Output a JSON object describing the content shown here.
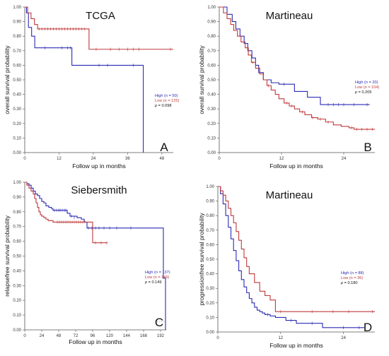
{
  "colors": {
    "high": "#2b2bb3",
    "low": "#c0393b",
    "axis": "#555555"
  },
  "chart_data": [
    {
      "type": "line",
      "panel": "A",
      "title": "TCGA",
      "xlabel": "Follow up in months",
      "ylabel": "overall survival probability",
      "xlim": [
        0,
        52
      ],
      "ylim": [
        0,
        1
      ],
      "xticks": [
        0,
        12,
        24,
        36,
        48
      ],
      "yticks": [
        0,
        0.1,
        0.2,
        0.3,
        0.4,
        0.5,
        0.6,
        0.7,
        0.8,
        0.9,
        1.0
      ],
      "legend": {
        "position": "right",
        "stat_prefix": "p",
        "stat_value": "= 0.098"
      },
      "series": [
        {
          "key": "high",
          "label_name": "High",
          "label_count": "(n = 50)",
          "x": [
            0,
            0.6,
            1.3,
            2.4,
            3.5,
            16.5,
            41.5,
            41.5
          ],
          "y": [
            1.0,
            0.96,
            0.86,
            0.8,
            0.72,
            0.6,
            0.6,
            0.0
          ],
          "censor_x": [
            7,
            13,
            15,
            16,
            26,
            29,
            38
          ],
          "censor_y": [
            0.72,
            0.72,
            0.72,
            0.72,
            0.6,
            0.6,
            0.6
          ]
        },
        {
          "key": "low",
          "label_name": "Low",
          "label_count": "(n = 125)",
          "x": [
            0,
            1.0,
            2.2,
            3.4,
            4.5,
            22.5,
            52
          ],
          "y": [
            1.0,
            0.96,
            0.92,
            0.88,
            0.85,
            0.71,
            0.71
          ],
          "censor_x": [
            5,
            6,
            7,
            8,
            9,
            10,
            11,
            12,
            13,
            14,
            15,
            16,
            17,
            18,
            19,
            20,
            21,
            25,
            30,
            33,
            36,
            38,
            40,
            51
          ],
          "censor_y": [
            0.85,
            0.85,
            0.85,
            0.85,
            0.85,
            0.85,
            0.85,
            0.85,
            0.85,
            0.85,
            0.85,
            0.85,
            0.85,
            0.85,
            0.85,
            0.85,
            0.85,
            0.71,
            0.71,
            0.71,
            0.71,
            0.71,
            0.71,
            0.71
          ]
        }
      ]
    },
    {
      "type": "line",
      "panel": "B",
      "title": "Martineau",
      "xlabel": "Follow up in months",
      "ylabel": "overall survival probability",
      "xlim": [
        0,
        30
      ],
      "ylim": [
        0,
        1
      ],
      "xticks": [
        0,
        12,
        24
      ],
      "yticks": [
        0,
        0.1,
        0.2,
        0.3,
        0.4,
        0.5,
        0.6,
        0.7,
        0.8,
        0.9,
        1.0
      ],
      "legend": {
        "position": "right",
        "stat_prefix": "p",
        "stat_value": "= 0.205"
      },
      "series": [
        {
          "key": "high",
          "label_name": "High",
          "label_count": "(n = 20)",
          "x": [
            0,
            1.5,
            2.5,
            3.2,
            4.0,
            4.8,
            5.5,
            6.3,
            7.0,
            7.6,
            8.5,
            10.0,
            11.5,
            14.5,
            17.0,
            19.5,
            29
          ],
          "y": [
            1.0,
            0.95,
            0.9,
            0.85,
            0.8,
            0.75,
            0.7,
            0.65,
            0.6,
            0.55,
            0.5,
            0.48,
            0.47,
            0.42,
            0.38,
            0.33,
            0.33
          ],
          "censor_x": [
            12.5,
            21,
            22,
            23,
            24,
            26,
            28.5
          ],
          "censor_y": [
            0.47,
            0.33,
            0.33,
            0.33,
            0.33,
            0.33,
            0.33
          ]
        },
        {
          "key": "low",
          "label_name": "Low",
          "label_count": "(n = 104)",
          "x": [
            0,
            0.8,
            1.5,
            2.2,
            2.8,
            3.5,
            4.2,
            5.0,
            5.6,
            6.2,
            7.0,
            7.8,
            8.5,
            9.2,
            10.0,
            10.8,
            11.5,
            12.5,
            13.5,
            14.5,
            15.5,
            16.5,
            17.8,
            19.0,
            20.5,
            22.0,
            23.5,
            25.0,
            26.0,
            30
          ],
          "y": [
            1.0,
            0.96,
            0.92,
            0.88,
            0.84,
            0.8,
            0.76,
            0.72,
            0.67,
            0.62,
            0.58,
            0.54,
            0.5,
            0.46,
            0.43,
            0.4,
            0.37,
            0.34,
            0.32,
            0.3,
            0.28,
            0.26,
            0.24,
            0.23,
            0.21,
            0.19,
            0.18,
            0.17,
            0.16,
            0.16
          ],
          "censor_x": [
            6.5,
            9.5,
            13,
            14,
            16,
            18,
            19.5,
            21,
            25.5,
            26.5,
            27.5,
            28.5,
            29.5
          ],
          "censor_y": [
            0.62,
            0.46,
            0.34,
            0.32,
            0.28,
            0.24,
            0.23,
            0.21,
            0.17,
            0.16,
            0.16,
            0.16,
            0.16
          ]
        }
      ]
    },
    {
      "type": "line",
      "panel": "C",
      "title": "Siebersmith",
      "xlabel": "Follow up in months",
      "ylabel": "relapsefree survival probability",
      "xlim": [
        0,
        200
      ],
      "ylim": [
        0,
        1
      ],
      "xticks": [
        0,
        24,
        48,
        72,
        96,
        120,
        144,
        168,
        192
      ],
      "yticks": [
        0,
        0.1,
        0.2,
        0.3,
        0.4,
        0.5,
        0.6,
        0.7,
        0.8,
        0.9,
        1.0
      ],
      "legend": {
        "position": "right",
        "stat_prefix": "p",
        "stat_value": "= 0.149"
      },
      "series": [
        {
          "key": "high",
          "label_name": "High",
          "label_count": "(n = 137)",
          "x": [
            0,
            3,
            6,
            9,
            12,
            15,
            18,
            21,
            24,
            27,
            30,
            34,
            38,
            40,
            60,
            64,
            74,
            80,
            84,
            88,
            196,
            196,
            199
          ],
          "y": [
            1.0,
            0.99,
            0.98,
            0.96,
            0.94,
            0.92,
            0.91,
            0.89,
            0.87,
            0.86,
            0.84,
            0.83,
            0.82,
            0.81,
            0.79,
            0.77,
            0.76,
            0.75,
            0.73,
            0.69,
            0.69,
            0.35,
            0.0
          ],
          "censor_x": [
            42,
            45,
            48,
            50,
            53,
            56,
            58,
            66,
            70,
            90,
            95,
            100,
            105,
            112,
            120,
            130,
            150
          ],
          "censor_y": [
            0.81,
            0.81,
            0.81,
            0.81,
            0.81,
            0.81,
            0.81,
            0.77,
            0.76,
            0.69,
            0.69,
            0.69,
            0.69,
            0.69,
            0.69,
            0.69,
            0.69
          ]
        },
        {
          "key": "low",
          "label_name": "Low",
          "label_count": "(n = 149)",
          "x": [
            0,
            3,
            6,
            9,
            12,
            14,
            16,
            18,
            20,
            22,
            24,
            27,
            30,
            33,
            36,
            40,
            44,
            90,
            96,
            117
          ],
          "y": [
            1.0,
            0.98,
            0.96,
            0.94,
            0.92,
            0.89,
            0.86,
            0.83,
            0.8,
            0.78,
            0.77,
            0.76,
            0.75,
            0.74,
            0.74,
            0.73,
            0.73,
            0.73,
            0.59,
            0.59
          ],
          "censor_x": [
            46,
            49,
            52,
            55,
            58,
            61,
            64,
            67,
            70,
            73,
            76,
            79,
            82,
            85,
            100,
            108,
            116
          ],
          "censor_y": [
            0.73,
            0.73,
            0.73,
            0.73,
            0.73,
            0.73,
            0.73,
            0.73,
            0.73,
            0.73,
            0.73,
            0.73,
            0.73,
            0.73,
            0.59,
            0.59,
            0.59
          ]
        }
      ]
    },
    {
      "type": "line",
      "panel": "D",
      "title": "Martineau",
      "xlabel": "Follow up in months",
      "ylabel": "progressionfree survival probability",
      "xlim": [
        0,
        30
      ],
      "ylim": [
        0,
        1
      ],
      "xticks": [
        0,
        12,
        24
      ],
      "yticks": [
        0,
        0.1,
        0.2,
        0.3,
        0.4,
        0.5,
        0.6,
        0.7,
        0.8,
        0.9,
        1.0
      ],
      "legend": {
        "position": "right",
        "stat_prefix": "p",
        "stat_value": "= 0.180"
      },
      "series": [
        {
          "key": "high",
          "label_name": "High",
          "label_count": "(n = 88)",
          "x": [
            0,
            0.5,
            1.0,
            1.5,
            2.0,
            2.5,
            3.0,
            3.5,
            4.0,
            4.5,
            5.0,
            5.5,
            6.0,
            6.5,
            7.0,
            7.5,
            8.0,
            8.5,
            9.0,
            10.0,
            11.0,
            13.0,
            15.0,
            20.0,
            28
          ],
          "y": [
            1.0,
            0.95,
            0.88,
            0.8,
            0.72,
            0.64,
            0.56,
            0.49,
            0.42,
            0.36,
            0.31,
            0.27,
            0.23,
            0.2,
            0.17,
            0.15,
            0.14,
            0.13,
            0.12,
            0.11,
            0.1,
            0.08,
            0.06,
            0.03,
            0.03
          ],
          "censor_x": [
            9.5,
            14,
            18,
            24,
            27
          ],
          "censor_y": [
            0.12,
            0.08,
            0.06,
            0.03,
            0.03
          ]
        },
        {
          "key": "low",
          "label_name": "Low",
          "label_count": "(n = 36)",
          "x": [
            0,
            0.5,
            1.0,
            1.5,
            2.0,
            2.5,
            3.0,
            3.5,
            4.0,
            4.5,
            5.0,
            5.5,
            6.0,
            7.0,
            8.0,
            9.0,
            10.0,
            11.0,
            30
          ],
          "y": [
            1.0,
            0.97,
            0.94,
            0.9,
            0.85,
            0.8,
            0.75,
            0.69,
            0.63,
            0.57,
            0.51,
            0.45,
            0.4,
            0.34,
            0.28,
            0.25,
            0.22,
            0.14,
            0.14
          ],
          "censor_x": [
            12,
            18,
            22,
            25,
            29.5
          ],
          "censor_y": [
            0.14,
            0.14,
            0.14,
            0.14,
            0.14
          ]
        }
      ]
    }
  ]
}
